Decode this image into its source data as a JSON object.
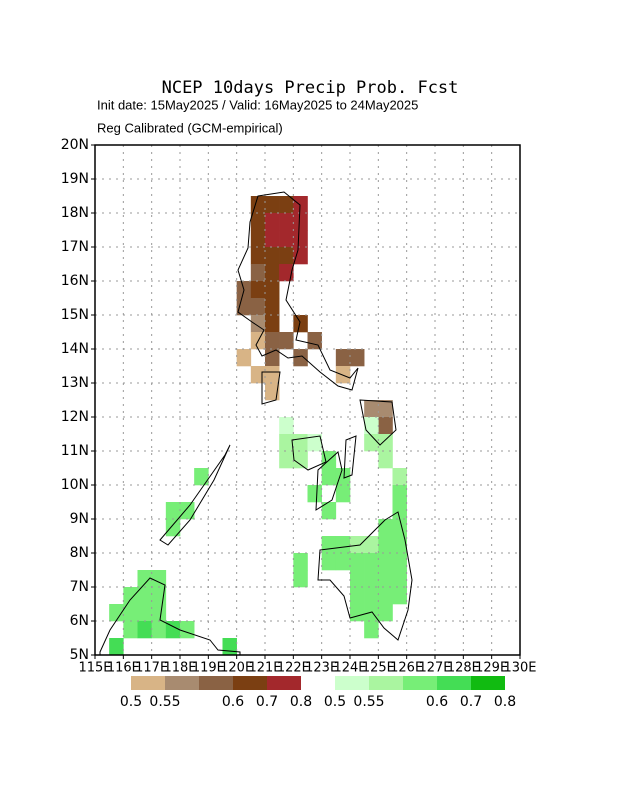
{
  "chart_data": {
    "type": "gridmap",
    "title": "NCEP 10days Precip Prob. Fcst",
    "subtitle": "Init date: 15May2025 / Valid: 16May2025 to 24May2025",
    "subtitle2": "Reg Calibrated (GCM-empirical)",
    "xlim": [
      115,
      130
    ],
    "ylim": [
      5,
      20
    ],
    "xticks": [
      {
        "value": 115,
        "label": "115E"
      },
      {
        "value": 116,
        "label": "116E"
      },
      {
        "value": 117,
        "label": "117E"
      },
      {
        "value": 118,
        "label": "118E"
      },
      {
        "value": 119,
        "label": "119E"
      },
      {
        "value": 120,
        "label": "120E"
      },
      {
        "value": 121,
        "label": "121E"
      },
      {
        "value": 122,
        "label": "122E"
      },
      {
        "value": 123,
        "label": "123E"
      },
      {
        "value": 124,
        "label": "124E"
      },
      {
        "value": 125,
        "label": "125E"
      },
      {
        "value": 126,
        "label": "126E"
      },
      {
        "value": 127,
        "label": "127E"
      },
      {
        "value": 128,
        "label": "128E"
      },
      {
        "value": 129,
        "label": "129E"
      },
      {
        "value": 130,
        "label": "130E"
      }
    ],
    "yticks": [
      {
        "value": 5,
        "label": "5N"
      },
      {
        "value": 6,
        "label": "6N"
      },
      {
        "value": 7,
        "label": "7N"
      },
      {
        "value": 8,
        "label": "8N"
      },
      {
        "value": 9,
        "label": "9N"
      },
      {
        "value": 10,
        "label": "10N"
      },
      {
        "value": 11,
        "label": "11N"
      },
      {
        "value": 12,
        "label": "12N"
      },
      {
        "value": 13,
        "label": "13N"
      },
      {
        "value": 14,
        "label": "14N"
      },
      {
        "value": 15,
        "label": "15N"
      },
      {
        "value": 16,
        "label": "16N"
      },
      {
        "value": 17,
        "label": "17N"
      },
      {
        "value": 18,
        "label": "18N"
      },
      {
        "value": 19,
        "label": "19N"
      },
      {
        "value": 20,
        "label": "20N"
      }
    ],
    "grid": true,
    "cell_size": 0.5,
    "dry": {
      "levels": [
        0.5,
        0.55,
        0.6,
        0.7,
        0.8
      ],
      "colors": [
        "#d8b486",
        "#a88b70",
        "#8a6244",
        "#7b3f12",
        "#a3282c"
      ],
      "cells": [
        [
          120.5,
          18,
          0.7
        ],
        [
          121,
          18,
          0.7
        ],
        [
          121.5,
          18,
          0.7
        ],
        [
          122,
          18,
          0.8
        ],
        [
          120.5,
          17.5,
          0.7
        ],
        [
          121,
          17.5,
          0.8
        ],
        [
          121.5,
          17.5,
          0.8
        ],
        [
          122,
          17.5,
          0.8
        ],
        [
          120.5,
          17,
          0.7
        ],
        [
          121,
          17,
          0.8
        ],
        [
          121.5,
          17,
          0.8
        ],
        [
          122,
          17,
          0.8
        ],
        [
          120.5,
          16.5,
          0.7
        ],
        [
          121,
          16.5,
          0.7
        ],
        [
          121.5,
          16.5,
          0.7
        ],
        [
          122,
          16.5,
          0.8
        ],
        [
          120.5,
          16,
          0.6
        ],
        [
          121,
          16,
          0.7
        ],
        [
          121.5,
          16,
          0.8
        ],
        [
          120,
          15.5,
          0.6
        ],
        [
          120.5,
          15.5,
          0.7
        ],
        [
          121,
          15.5,
          0.7
        ],
        [
          120,
          15,
          0.6
        ],
        [
          120.5,
          15,
          0.6
        ],
        [
          121,
          15,
          0.7
        ],
        [
          120.5,
          14.5,
          0.55
        ],
        [
          121,
          14.5,
          0.7
        ],
        [
          122,
          14.5,
          0.7
        ],
        [
          120.5,
          14,
          0.5
        ],
        [
          121,
          14,
          0.6
        ],
        [
          121.5,
          14,
          0.6
        ],
        [
          122.5,
          14,
          0.6
        ],
        [
          120,
          13.5,
          0.5
        ],
        [
          121,
          13.5,
          0.6
        ],
        [
          122,
          13.5,
          0.6
        ],
        [
          123.5,
          13.5,
          0.6
        ],
        [
          124,
          13.5,
          0.6
        ],
        [
          120.5,
          13,
          0.5
        ],
        [
          121,
          13,
          0.5
        ],
        [
          123.5,
          13,
          0.5
        ],
        [
          121,
          12.5,
          0.5
        ],
        [
          124.5,
          12,
          0.55
        ],
        [
          125,
          12,
          0.55
        ],
        [
          125,
          11.5,
          0.6
        ]
      ]
    },
    "wet": {
      "levels": [
        0.5,
        0.55,
        0.6,
        0.7,
        0.8
      ],
      "colors": [
        "#ccffcc",
        "#aaf5a0",
        "#77ee77",
        "#44dd55",
        "#11bb11"
      ],
      "cells": [
        [
          121.5,
          11.5,
          0.5
        ],
        [
          124.5,
          11.5,
          0.5
        ],
        [
          121.5,
          11,
          0.55
        ],
        [
          122,
          11,
          0.55
        ],
        [
          122.5,
          11,
          0.5
        ],
        [
          124.5,
          11,
          0.55
        ],
        [
          125,
          11,
          0.55
        ],
        [
          121.5,
          10.5,
          0.55
        ],
        [
          122,
          10.5,
          0.55
        ],
        [
          123,
          10.5,
          0.6
        ],
        [
          125,
          10.5,
          0.55
        ],
        [
          123,
          10,
          0.6
        ],
        [
          123.5,
          10,
          0.6
        ],
        [
          125.5,
          10,
          0.55
        ],
        [
          122.5,
          9.5,
          0.6
        ],
        [
          123.5,
          9.5,
          0.6
        ],
        [
          125.5,
          9.5,
          0.6
        ],
        [
          123,
          9,
          0.6
        ],
        [
          125.5,
          9,
          0.6
        ],
        [
          125,
          8.5,
          0.6
        ],
        [
          125.5,
          8.5,
          0.6
        ],
        [
          123,
          8,
          0.6
        ],
        [
          123.5,
          8,
          0.6
        ],
        [
          124,
          8,
          0.55
        ],
        [
          124.5,
          8,
          0.55
        ],
        [
          125,
          8,
          0.6
        ],
        [
          125.5,
          8,
          0.6
        ],
        [
          122,
          7.5,
          0.6
        ],
        [
          123,
          7.5,
          0.6
        ],
        [
          123.5,
          7.5,
          0.6
        ],
        [
          124,
          7.5,
          0.6
        ],
        [
          124.5,
          7.5,
          0.6
        ],
        [
          125,
          7.5,
          0.6
        ],
        [
          125.5,
          7.5,
          0.6
        ],
        [
          122,
          7,
          0.6
        ],
        [
          124,
          7,
          0.6
        ],
        [
          124.5,
          7,
          0.6
        ],
        [
          125,
          7,
          0.6
        ],
        [
          125.5,
          7,
          0.6
        ],
        [
          124,
          6.5,
          0.6
        ],
        [
          124.5,
          6.5,
          0.6
        ],
        [
          125,
          6.5,
          0.6
        ],
        [
          125.5,
          6.5,
          0.6
        ],
        [
          124,
          6,
          0.6
        ],
        [
          124.5,
          6,
          0.6
        ],
        [
          125,
          6,
          0.6
        ],
        [
          124.5,
          5.5,
          0.6
        ],
        [
          116.5,
          7,
          0.6
        ],
        [
          117,
          7,
          0.6
        ],
        [
          116,
          6.5,
          0.6
        ],
        [
          116.5,
          6.5,
          0.6
        ],
        [
          117,
          6.5,
          0.6
        ],
        [
          115.5,
          6,
          0.6
        ],
        [
          116,
          6,
          0.6
        ],
        [
          116.5,
          6,
          0.6
        ],
        [
          117,
          6,
          0.6
        ],
        [
          116,
          5.5,
          0.6
        ],
        [
          116.5,
          5.5,
          0.7
        ],
        [
          117,
          5.5,
          0.6
        ],
        [
          117.5,
          5.5,
          0.7
        ],
        [
          118,
          5.5,
          0.6
        ],
        [
          115.5,
          5,
          0.7
        ],
        [
          119.5,
          5,
          0.7
        ],
        [
          117.5,
          9,
          0.6
        ],
        [
          118,
          9,
          0.6
        ],
        [
          117.5,
          8.5,
          0.6
        ],
        [
          118.5,
          10,
          0.6
        ]
      ]
    }
  }
}
